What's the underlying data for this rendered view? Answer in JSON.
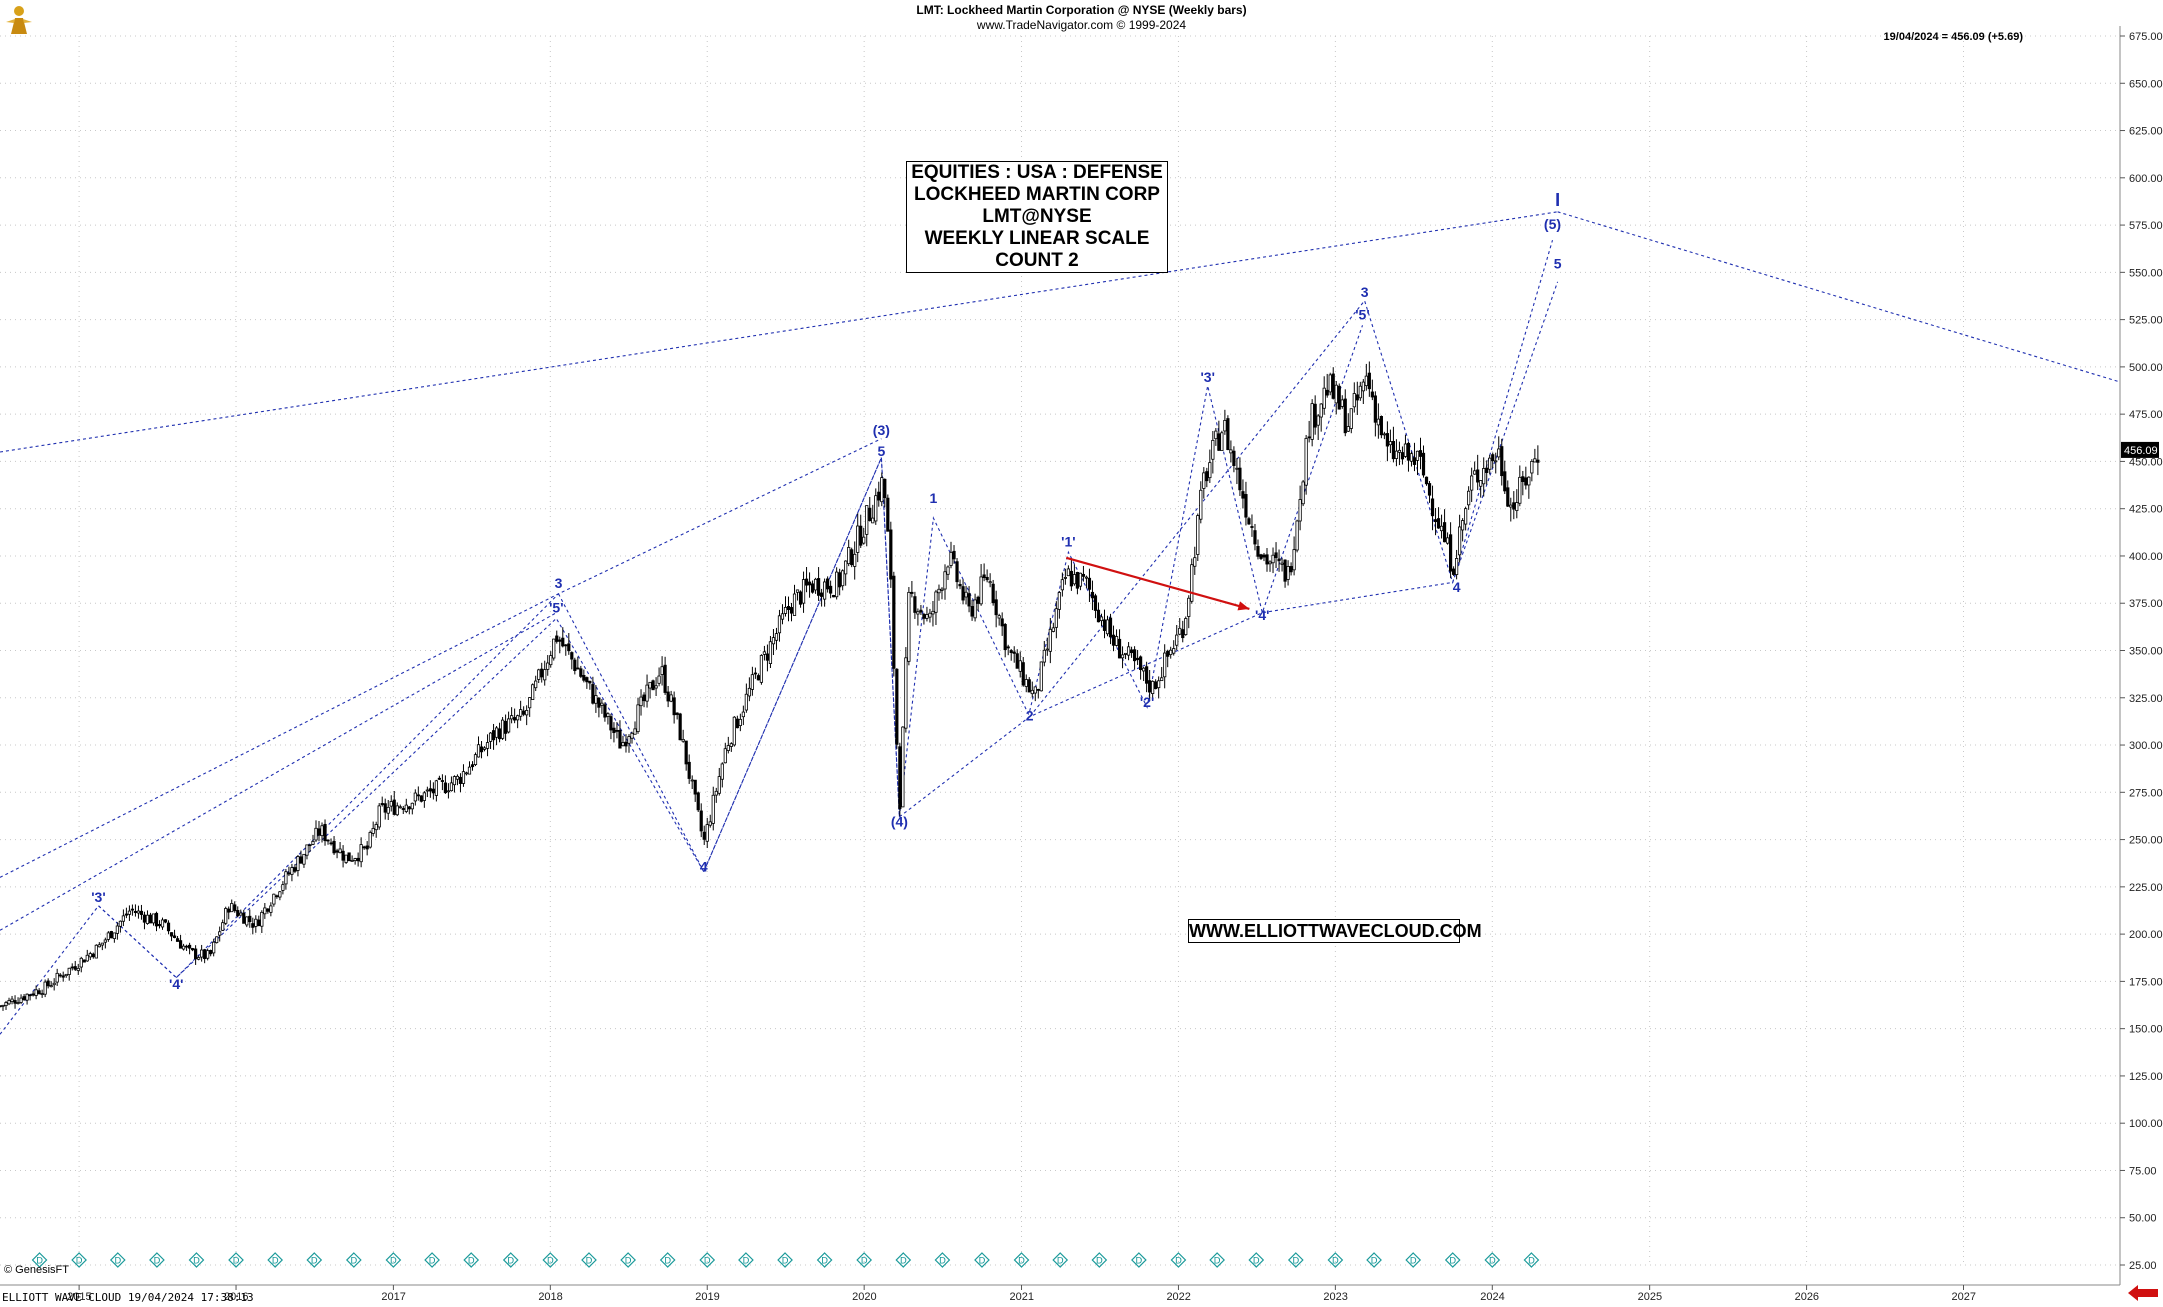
{
  "header": {
    "title": "LMT:  Lockheed Martin Corporation @ NYSE  (Weekly bars)",
    "subtitle": "www.TradeNavigator.com © 1999-2024",
    "price_stamp": "19/04/2024 = 456.09 (+5.69)",
    "last_price_tag": "456.09"
  },
  "infobox": {
    "lines": [
      "EQUITIES : USA : DEFENSE",
      "LOCKHEED MARTIN CORP",
      "LMT@NYSE",
      "WEEKLY LINEAR SCALE",
      "COUNT 2"
    ]
  },
  "url_box": "WWW.ELLIOTTWAVECLOUD.COM",
  "footer": {
    "copyright": "© GenesisFT",
    "status": "ELLIOTT WAVE CLOUD   19/04/2024 17:38:13"
  },
  "colors": {
    "candle": "#000000",
    "wave_lines": "#1f2fb0",
    "wave_labels": "#1f2fb0",
    "arrow": "#d01010",
    "last_price_bg": "#000000",
    "div_marker": "#1a9a9a"
  },
  "icons": [
    "gold-figure-logo-icon",
    "dividend-marker-icon",
    "red-left-arrow-icon"
  ],
  "chart_data": {
    "type": "candlestick",
    "title": "LMT:  Lockheed Martin Corporation @ NYSE  (Weekly bars)",
    "scale": "linear",
    "ylim": [
      25,
      675
    ],
    "yticks": [
      "675.00",
      "650.00",
      "625.00",
      "600.00",
      "575.00",
      "550.00",
      "525.00",
      "500.00",
      "475.00",
      "450.00",
      "425.00",
      "400.00",
      "375.00",
      "350.00",
      "325.00",
      "300.00",
      "275.00",
      "250.00",
      "225.00",
      "200.00",
      "175.00",
      "150.00",
      "125.00",
      "100.00",
      "75.00",
      "50.00",
      "25.00"
    ],
    "xlim": [
      "2014-07-01",
      "2027-12-31"
    ],
    "xticks": [
      "2015",
      "2016",
      "2017",
      "2018",
      "2019",
      "2020",
      "2021",
      "2022",
      "2023",
      "2024",
      "2025",
      "2026",
      "2027"
    ],
    "grid": true,
    "price_path": [
      [
        "2014-07-01",
        162
      ],
      [
        "2014-10-15",
        172
      ],
      [
        "2015-02-15",
        193
      ],
      [
        "2015-05-01",
        213
      ],
      [
        "2015-07-15",
        205
      ],
      [
        "2015-09-15",
        190
      ],
      [
        "2015-11-01",
        188
      ],
      [
        "2015-12-15",
        215
      ],
      [
        "2016-02-15",
        205
      ],
      [
        "2016-04-01",
        222
      ],
      [
        "2016-07-15",
        255
      ],
      [
        "2016-09-15",
        240
      ],
      [
        "2016-11-01",
        245
      ],
      [
        "2016-12-01",
        265
      ],
      [
        "2017-03-01",
        272
      ],
      [
        "2017-06-01",
        282
      ],
      [
        "2017-09-01",
        308
      ],
      [
        "2017-11-01",
        315
      ],
      [
        "2018-01-15",
        358
      ],
      [
        "2018-03-01",
        342
      ],
      [
        "2018-05-01",
        318
      ],
      [
        "2018-06-15",
        300
      ],
      [
        "2018-09-15",
        340
      ],
      [
        "2018-11-01",
        305
      ],
      [
        "2018-12-24",
        248
      ],
      [
        "2019-02-15",
        300
      ],
      [
        "2019-05-01",
        340
      ],
      [
        "2019-07-15",
        375
      ],
      [
        "2019-09-01",
        385
      ],
      [
        "2019-11-01",
        385
      ],
      [
        "2020-02-15",
        440
      ],
      [
        "2020-03-01",
        395
      ],
      [
        "2020-03-23",
        266
      ],
      [
        "2020-04-15",
        380
      ],
      [
        "2020-06-01",
        365
      ],
      [
        "2020-07-15",
        400
      ],
      [
        "2020-09-01",
        370
      ],
      [
        "2020-10-15",
        390
      ],
      [
        "2020-12-01",
        350
      ],
      [
        "2021-02-01",
        325
      ],
      [
        "2021-04-15",
        390
      ],
      [
        "2021-06-01",
        385
      ],
      [
        "2021-08-01",
        355
      ],
      [
        "2021-10-01",
        340
      ],
      [
        "2021-11-01",
        330
      ],
      [
        "2022-01-15",
        365
      ],
      [
        "2022-03-01",
        440
      ],
      [
        "2022-04-15",
        470
      ],
      [
        "2022-06-15",
        420
      ],
      [
        "2022-07-15",
        400
      ],
      [
        "2022-09-15",
        390
      ],
      [
        "2022-11-01",
        470
      ],
      [
        "2022-12-15",
        490
      ],
      [
        "2023-02-01",
        470
      ],
      [
        "2023-03-15",
        495
      ],
      [
        "2023-05-01",
        455
      ],
      [
        "2023-07-15",
        450
      ],
      [
        "2023-10-01",
        395
      ],
      [
        "2023-11-15",
        440
      ],
      [
        "2024-01-15",
        455
      ],
      [
        "2024-02-15",
        425
      ],
      [
        "2024-04-19",
        456
      ]
    ],
    "wave_labels": [
      {
        "text": "'3'",
        "x": "2015-02-15",
        "y": 217
      },
      {
        "text": "'4'",
        "x": "2015-08-15",
        "y": 171
      },
      {
        "text": "3",
        "x": "2018-01-20",
        "y": 383
      },
      {
        "text": "'5'",
        "x": "2018-01-15",
        "y": 370
      },
      {
        "text": "4",
        "x": "2018-12-24",
        "y": 233
      },
      {
        "text": "(3)",
        "x": "2020-02-10",
        "y": 464
      },
      {
        "text": "5",
        "x": "2020-02-10",
        "y": 453
      },
      {
        "text": "1",
        "x": "2020-06-10",
        "y": 428
      },
      {
        "text": "(4)",
        "x": "2020-03-23",
        "y": 257
      },
      {
        "text": "2",
        "x": "2021-01-20",
        "y": 313
      },
      {
        "text": "'1'",
        "x": "2021-04-20",
        "y": 405
      },
      {
        "text": "'2'",
        "x": "2021-10-20",
        "y": 320
      },
      {
        "text": "'3'",
        "x": "2022-03-10",
        "y": 492
      },
      {
        "text": "'4'",
        "x": "2022-07-15",
        "y": 366
      },
      {
        "text": "3",
        "x": "2023-03-10",
        "y": 537
      },
      {
        "text": "'5'",
        "x": "2023-03-05",
        "y": 525
      },
      {
        "text": "4",
        "x": "2023-10-10",
        "y": 381
      },
      {
        "text": "(5)",
        "x": "2024-05-20",
        "y": 573
      },
      {
        "text": "5",
        "x": "2024-06-01",
        "y": 552
      },
      {
        "text": "I",
        "x": "2024-06-01",
        "y": 585
      }
    ],
    "wave_lines": [
      [
        [
          "2014-07-01",
          147
        ],
        [
          "2015-02-15",
          215
        ],
        [
          "2015-08-15",
          177
        ],
        [
          "2018-01-15",
          367
        ],
        [
          "2018-12-24",
          233
        ],
        [
          "2020-02-10",
          452
        ],
        [
          "2020-03-23",
          262
        ]
      ],
      [
        [
          "2015-02-15",
          215
        ],
        [
          "2015-08-15",
          177
        ]
      ],
      [
        [
          "2015-08-15",
          177
        ],
        [
          "2018-01-20",
          380
        ]
      ],
      [
        [
          "2018-01-20",
          380
        ],
        [
          "2018-12-24",
          233
        ]
      ],
      [
        [
          "2018-12-24",
          233
        ],
        [
          "2020-02-10",
          452
        ]
      ],
      [
        [
          "2020-02-10",
          452
        ],
        [
          "2020-03-23",
          262
        ]
      ],
      [
        [
          "2020-03-23",
          262
        ],
        [
          "2021-01-20",
          315
        ],
        [
          "2022-07-15",
          370
        ],
        [
          "2023-10-01",
          386
        ],
        [
          "2024-05-20",
          567
        ]
      ],
      [
        [
          "2020-03-23",
          262
        ],
        [
          "2020-06-10",
          420
        ],
        [
          "2021-01-20",
          315
        ],
        [
          "2023-03-10",
          535
        ],
        [
          "2023-10-01",
          386
        ],
        [
          "2024-06-01",
          545
        ]
      ],
      [
        [
          "2021-01-20",
          318
        ],
        [
          "2021-04-20",
          402
        ],
        [
          "2021-10-20",
          320
        ],
        [
          "2022-03-10",
          490
        ],
        [
          "2022-07-15",
          370
        ],
        [
          "2023-03-05",
          522
        ]
      ],
      [
        [
          "2014-07-01",
          455
        ],
        [
          "2024-06-01",
          582
        ]
      ],
      [
        [
          "2024-06-01",
          582
        ],
        [
          "2027-12-31",
          492
        ]
      ],
      [
        [
          "2014-07-01",
          230
        ],
        [
          "2018-01-20",
          380
        ],
        [
          "2020-02-10",
          462
        ]
      ],
      [
        [
          "2014-07-01",
          202
        ],
        [
          "2018-01-15",
          370
        ]
      ]
    ],
    "arrow": {
      "from": [
        "2021-04-15",
        399
      ],
      "to": [
        "2022-06-15",
        372
      ]
    }
  }
}
